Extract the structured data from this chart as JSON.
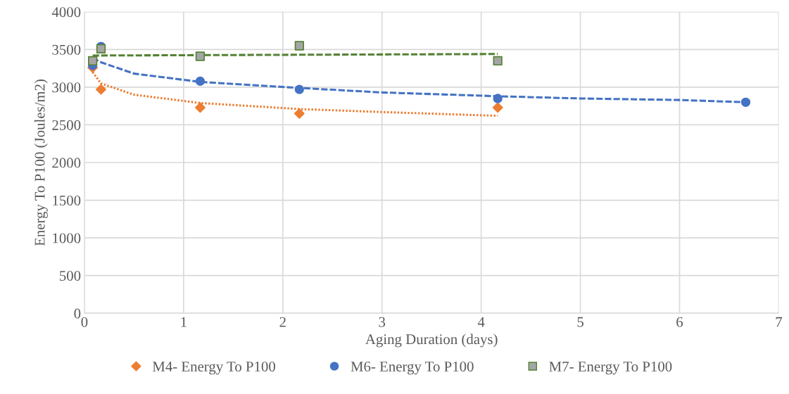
{
  "chart_data": {
    "type": "scatter",
    "xlabel": "Aging Duration (days)",
    "ylabel": "Energy To P100 (Joules/m2)",
    "xlim": [
      0,
      7
    ],
    "xticks": [
      0,
      1,
      2,
      3,
      4,
      5,
      6,
      7
    ],
    "ylim": [
      0,
      4000
    ],
    "yticks": [
      0,
      500,
      1000,
      1500,
      2000,
      2500,
      3000,
      3500,
      4000
    ],
    "grid": true,
    "legend": "bottom",
    "series": [
      {
        "type": "line",
        "color": "#ed7d31",
        "line_style": "dotted",
        "marker": "none",
        "x": [
          0.083,
          0.167,
          0.5,
          1.167,
          2.167,
          3,
          4.167
        ],
        "values": [
          3200,
          3050,
          2900,
          2790,
          2710,
          2670,
          2620
        ]
      },
      {
        "type": "line",
        "color": "#4472c4",
        "line_style": "dashed",
        "marker": "none",
        "x": [
          0.083,
          0.167,
          0.5,
          1.167,
          2.167,
          3,
          4.167,
          5,
          6,
          6.667
        ],
        "values": [
          3390,
          3330,
          3180,
          3070,
          2990,
          2930,
          2880,
          2850,
          2830,
          2800
        ]
      },
      {
        "type": "line",
        "color": "#548235",
        "line_style": "dashed",
        "marker": "none",
        "x": [
          0.083,
          4.167
        ],
        "values": [
          3420,
          3440
        ]
      },
      {
        "name": "M4- Energy To P100",
        "color": "#ed7d31",
        "marker": "diamond",
        "x": [
          0.083,
          0.167,
          1.167,
          2.167,
          4.167
        ],
        "values": [
          3260,
          2970,
          2730,
          2650,
          2730
        ]
      },
      {
        "name": "M6- Energy To P100",
        "color": "#4472c4",
        "marker": "circle",
        "x": [
          0.083,
          0.167,
          1.167,
          2.167,
          4.167,
          6.667
        ],
        "values": [
          3290,
          3540,
          3080,
          2970,
          2850,
          2800
        ]
      },
      {
        "name": "M7- Energy To P100",
        "color": "#a5a5a5",
        "marker": "square",
        "x": [
          0.083,
          0.167,
          1.167,
          2.167,
          4.167
        ],
        "values": [
          3350,
          3510,
          3410,
          3550,
          3350
        ]
      }
    ]
  }
}
